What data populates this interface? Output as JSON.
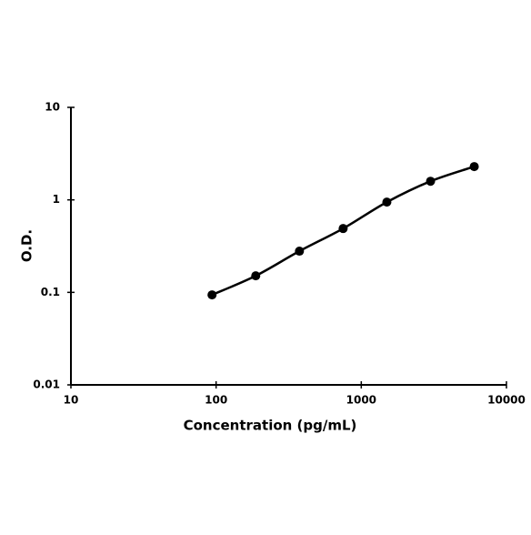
{
  "chart_data": {
    "type": "line",
    "xlabel": "Concentration (pg/mL)",
    "ylabel": "O.D.",
    "x": [
      93.75,
      187.5,
      375,
      750,
      1500,
      3000,
      6000
    ],
    "series": [
      {
        "color": "#000000",
        "values": [
          0.094,
          0.151,
          0.279,
          0.49,
          0.946,
          1.59,
          2.29
        ]
      }
    ],
    "xscale": "log",
    "yscale": "log",
    "xlim": [
      10,
      10000
    ],
    "ylim": [
      0.01,
      10
    ],
    "xticks": [
      10,
      100,
      1000,
      10000
    ],
    "yticks": [
      0.01,
      0.1,
      1,
      10
    ],
    "markers": true,
    "smooth": true,
    "grid": false
  }
}
